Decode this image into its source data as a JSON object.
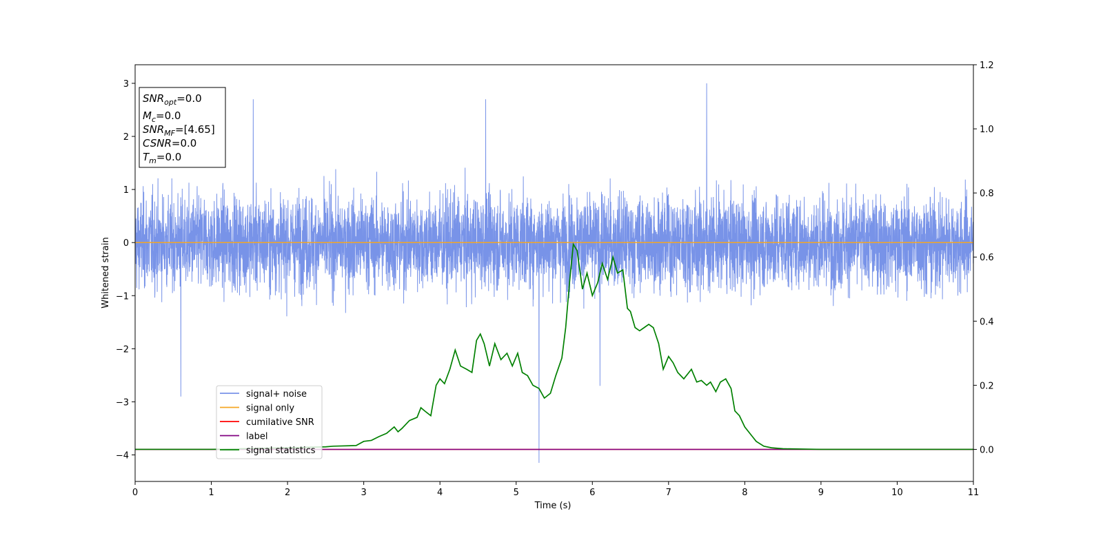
{
  "chart_data": {
    "type": "line",
    "xlabel": "Time (s)",
    "ylabel": "Whitened strain",
    "xlim": [
      0,
      11
    ],
    "ylim_left": [
      -4.5,
      3.35
    ],
    "ylim_right": [
      -0.1,
      1.2
    ],
    "x_ticks": [
      "0",
      "1",
      "2",
      "3",
      "4",
      "5",
      "6",
      "7",
      "8",
      "9",
      "10",
      "11"
    ],
    "y_left_ticks": [
      "3",
      "2",
      "1",
      "0",
      "−1",
      "−2",
      "−3",
      "−4"
    ],
    "y_right_ticks": [
      "0.0",
      "0.2",
      "0.4",
      "0.6",
      "0.8",
      "1.0",
      "1.2"
    ],
    "legend_placement": "lower-left",
    "series": [
      {
        "name": "signal+ noise",
        "color": "#7893e8",
        "axis": "left",
        "description_values": {
          "approx_envelope": [
            -1.5,
            1.5
          ],
          "notable_spikes": [
            [
              1.55,
              2.7
            ],
            [
              5.3,
              -4.15
            ],
            [
              7.5,
              3.0
            ],
            [
              0.6,
              -2.9
            ],
            [
              6.1,
              -2.7
            ],
            [
              4.6,
              2.7
            ]
          ]
        }
      },
      {
        "name": "signal only",
        "color": "#f5a623",
        "axis": "left",
        "x": [
          0,
          11
        ],
        "y": [
          0,
          0
        ]
      },
      {
        "name": "cumilative SNR",
        "color": "#ff0000",
        "axis": "right",
        "x": [
          0,
          11
        ],
        "y": [
          0,
          0
        ]
      },
      {
        "name": "label",
        "color": "#800080",
        "axis": "right",
        "x": [
          0,
          11
        ],
        "y": [
          0,
          0
        ]
      },
      {
        "name": "signal statistics",
        "color": "#008000",
        "axis": "right",
        "x": [
          0,
          1.0,
          2.0,
          2.5,
          2.6,
          2.9,
          3.0,
          3.1,
          3.2,
          3.3,
          3.4,
          3.45,
          3.5,
          3.6,
          3.7,
          3.75,
          3.8,
          3.88,
          3.95,
          4.0,
          4.06,
          4.13,
          4.2,
          4.27,
          4.35,
          4.42,
          4.48,
          4.53,
          4.58,
          4.65,
          4.72,
          4.8,
          4.88,
          4.95,
          5.02,
          5.08,
          5.15,
          5.22,
          5.3,
          5.37,
          5.45,
          5.52,
          5.6,
          5.65,
          5.7,
          5.75,
          5.8,
          5.87,
          5.93,
          6.0,
          6.07,
          6.13,
          6.2,
          6.27,
          6.33,
          6.4,
          6.46,
          6.5,
          6.56,
          6.62,
          6.68,
          6.74,
          6.8,
          6.87,
          6.93,
          7.0,
          7.06,
          7.12,
          7.2,
          7.3,
          7.37,
          7.43,
          7.5,
          7.55,
          7.62,
          7.68,
          7.75,
          7.82,
          7.87,
          7.93,
          8.0,
          8.1,
          8.15,
          8.25,
          8.35,
          8.5,
          9.0,
          10.0,
          11.0
        ],
        "y": [
          0.0,
          0.0,
          0.005,
          0.008,
          0.01,
          0.012,
          0.025,
          0.028,
          0.04,
          0.05,
          0.07,
          0.055,
          0.065,
          0.09,
          0.1,
          0.13,
          0.12,
          0.105,
          0.2,
          0.22,
          0.205,
          0.25,
          0.31,
          0.26,
          0.25,
          0.24,
          0.34,
          0.36,
          0.33,
          0.26,
          0.33,
          0.28,
          0.3,
          0.26,
          0.3,
          0.24,
          0.23,
          0.2,
          0.19,
          0.16,
          0.175,
          0.23,
          0.285,
          0.38,
          0.52,
          0.64,
          0.62,
          0.5,
          0.55,
          0.48,
          0.52,
          0.58,
          0.53,
          0.6,
          0.55,
          0.56,
          0.44,
          0.43,
          0.38,
          0.37,
          0.38,
          0.39,
          0.38,
          0.33,
          0.25,
          0.29,
          0.27,
          0.24,
          0.22,
          0.25,
          0.21,
          0.215,
          0.2,
          0.21,
          0.18,
          0.21,
          0.22,
          0.19,
          0.12,
          0.105,
          0.07,
          0.04,
          0.025,
          0.01,
          0.005,
          0.002,
          0.0,
          0.0,
          0.0
        ]
      }
    ],
    "annotation": {
      "lines": [
        {
          "var": "SNR",
          "sub": "opt",
          "val": "=0.0"
        },
        {
          "var": "M",
          "sub": "c",
          "val": "=0.0"
        },
        {
          "var": "SNR",
          "sub": "MF",
          "val": "=[4.65]"
        },
        {
          "var": "CSNR",
          "sub": "",
          "val": "=0.0"
        },
        {
          "var": "T",
          "sub": "m",
          "val": "=0.0"
        }
      ]
    }
  }
}
